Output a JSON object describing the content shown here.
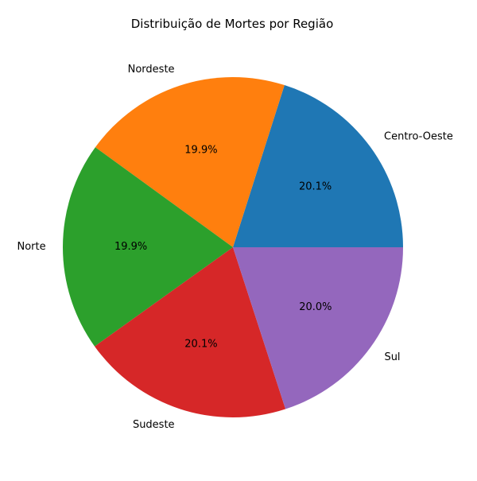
{
  "chart_data": {
    "type": "pie",
    "title": "Distribuição de Mortes por Região",
    "categories": [
      "Centro-Oeste",
      "Nordeste",
      "Norte",
      "Sudeste",
      "Sul"
    ],
    "values": [
      20.1,
      19.9,
      19.9,
      20.1,
      20.0
    ],
    "percent_labels": [
      "20.1%",
      "19.9%",
      "19.9%",
      "20.1%",
      "20.0%"
    ],
    "colors": [
      "#1f77b4",
      "#ff7f0e",
      "#2ca02c",
      "#d62728",
      "#9467bd"
    ],
    "start_angle_deg": 0,
    "direction": "counterclockwise"
  }
}
